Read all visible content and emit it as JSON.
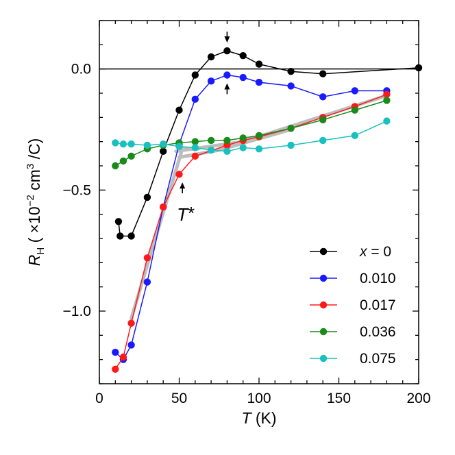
{
  "chart_data": {
    "type": "line",
    "title": "",
    "xlabel": {
      "symbol": "T",
      "unit": "(K)"
    },
    "ylabel": {
      "symbol": "R",
      "subscript": "H",
      "unit": "( ×10",
      "exponent": "−2",
      "unit_tail": " cm",
      "unit_exp": "3",
      "unit_end": " /C)"
    },
    "xlim": [
      0,
      200
    ],
    "ylim": [
      -1.3,
      0.2
    ],
    "xticks": [
      0,
      50,
      100,
      150,
      200
    ],
    "xtick_labels": [
      "0",
      "50",
      "100",
      "150",
      "200"
    ],
    "yticks": [
      0.0,
      -0.5,
      -1.0
    ],
    "ytick_labels": [
      "0.0",
      "−0.5",
      "−1.0"
    ],
    "zero_line": 0,
    "legend_position": "lower-right",
    "legend_var": "x",
    "legend_eq": " = 0",
    "series": [
      {
        "name": "x = 0",
        "color": "#000000",
        "x": [
          12,
          13,
          20,
          30,
          40,
          50,
          60,
          70,
          80,
          90,
          100,
          120,
          140,
          200
        ],
        "y": [
          -0.63,
          -0.69,
          -0.69,
          -0.53,
          -0.34,
          -0.17,
          -0.025,
          0.05,
          0.075,
          0.055,
          0.02,
          -0.01,
          -0.02,
          0.005
        ]
      },
      {
        "name": "0.010",
        "color": "#1a1aff",
        "x": [
          10,
          15,
          20,
          30,
          40,
          50,
          60,
          70,
          80,
          90,
          100,
          120,
          140,
          160,
          180
        ],
        "y": [
          -1.17,
          -1.2,
          -1.14,
          -0.88,
          -0.57,
          -0.31,
          -0.125,
          -0.05,
          -0.025,
          -0.035,
          -0.055,
          -0.07,
          -0.115,
          -0.09,
          -0.09
        ]
      },
      {
        "name": "0.017",
        "color": "#ff1a1a",
        "x": [
          10,
          15,
          20,
          30,
          40,
          50,
          60,
          80,
          90,
          100,
          120,
          140,
          160,
          180
        ],
        "y": [
          -1.24,
          -1.19,
          -1.05,
          -0.78,
          -0.57,
          -0.435,
          -0.36,
          -0.315,
          -0.295,
          -0.28,
          -0.245,
          -0.2,
          -0.155,
          -0.105
        ]
      },
      {
        "name": "0.036",
        "color": "#1a8a1a",
        "x": [
          10,
          15,
          20,
          30,
          40,
          50,
          60,
          70,
          80,
          90,
          100,
          120,
          140,
          160,
          180
        ],
        "y": [
          -0.4,
          -0.38,
          -0.36,
          -0.33,
          -0.315,
          -0.305,
          -0.3,
          -0.295,
          -0.295,
          -0.285,
          -0.275,
          -0.245,
          -0.21,
          -0.17,
          -0.13
        ]
      },
      {
        "name": "0.075",
        "color": "#1ac0c0",
        "x": [
          10,
          15,
          20,
          30,
          40,
          50,
          60,
          70,
          80,
          90,
          100,
          120,
          140,
          160,
          180
        ],
        "y": [
          -0.305,
          -0.31,
          -0.31,
          -0.315,
          -0.31,
          -0.32,
          -0.325,
          -0.335,
          -0.34,
          -0.325,
          -0.33,
          -0.315,
          -0.295,
          -0.275,
          -0.215
        ]
      }
    ],
    "guide_lines": [
      {
        "points": [
          [
            20,
            -1.03
          ],
          [
            52,
            -0.33
          ],
          [
            62,
            -0.33
          ]
        ]
      },
      {
        "points": [
          [
            50,
            -0.365
          ],
          [
            75,
            -0.335
          ],
          [
            120,
            -0.25
          ]
        ]
      },
      {
        "points": [
          [
            48,
            -0.34
          ],
          [
            90,
            -0.3
          ],
          [
            180,
            -0.11
          ]
        ]
      }
    ],
    "annotations": {
      "tstar_label": "T",
      "tstar_star": "*",
      "tstar_arrow_at": [
        52,
        -0.44
      ],
      "arrow_down_at": [
        80,
        0.075
      ],
      "arrow_up_at": [
        80,
        -0.025
      ]
    }
  }
}
